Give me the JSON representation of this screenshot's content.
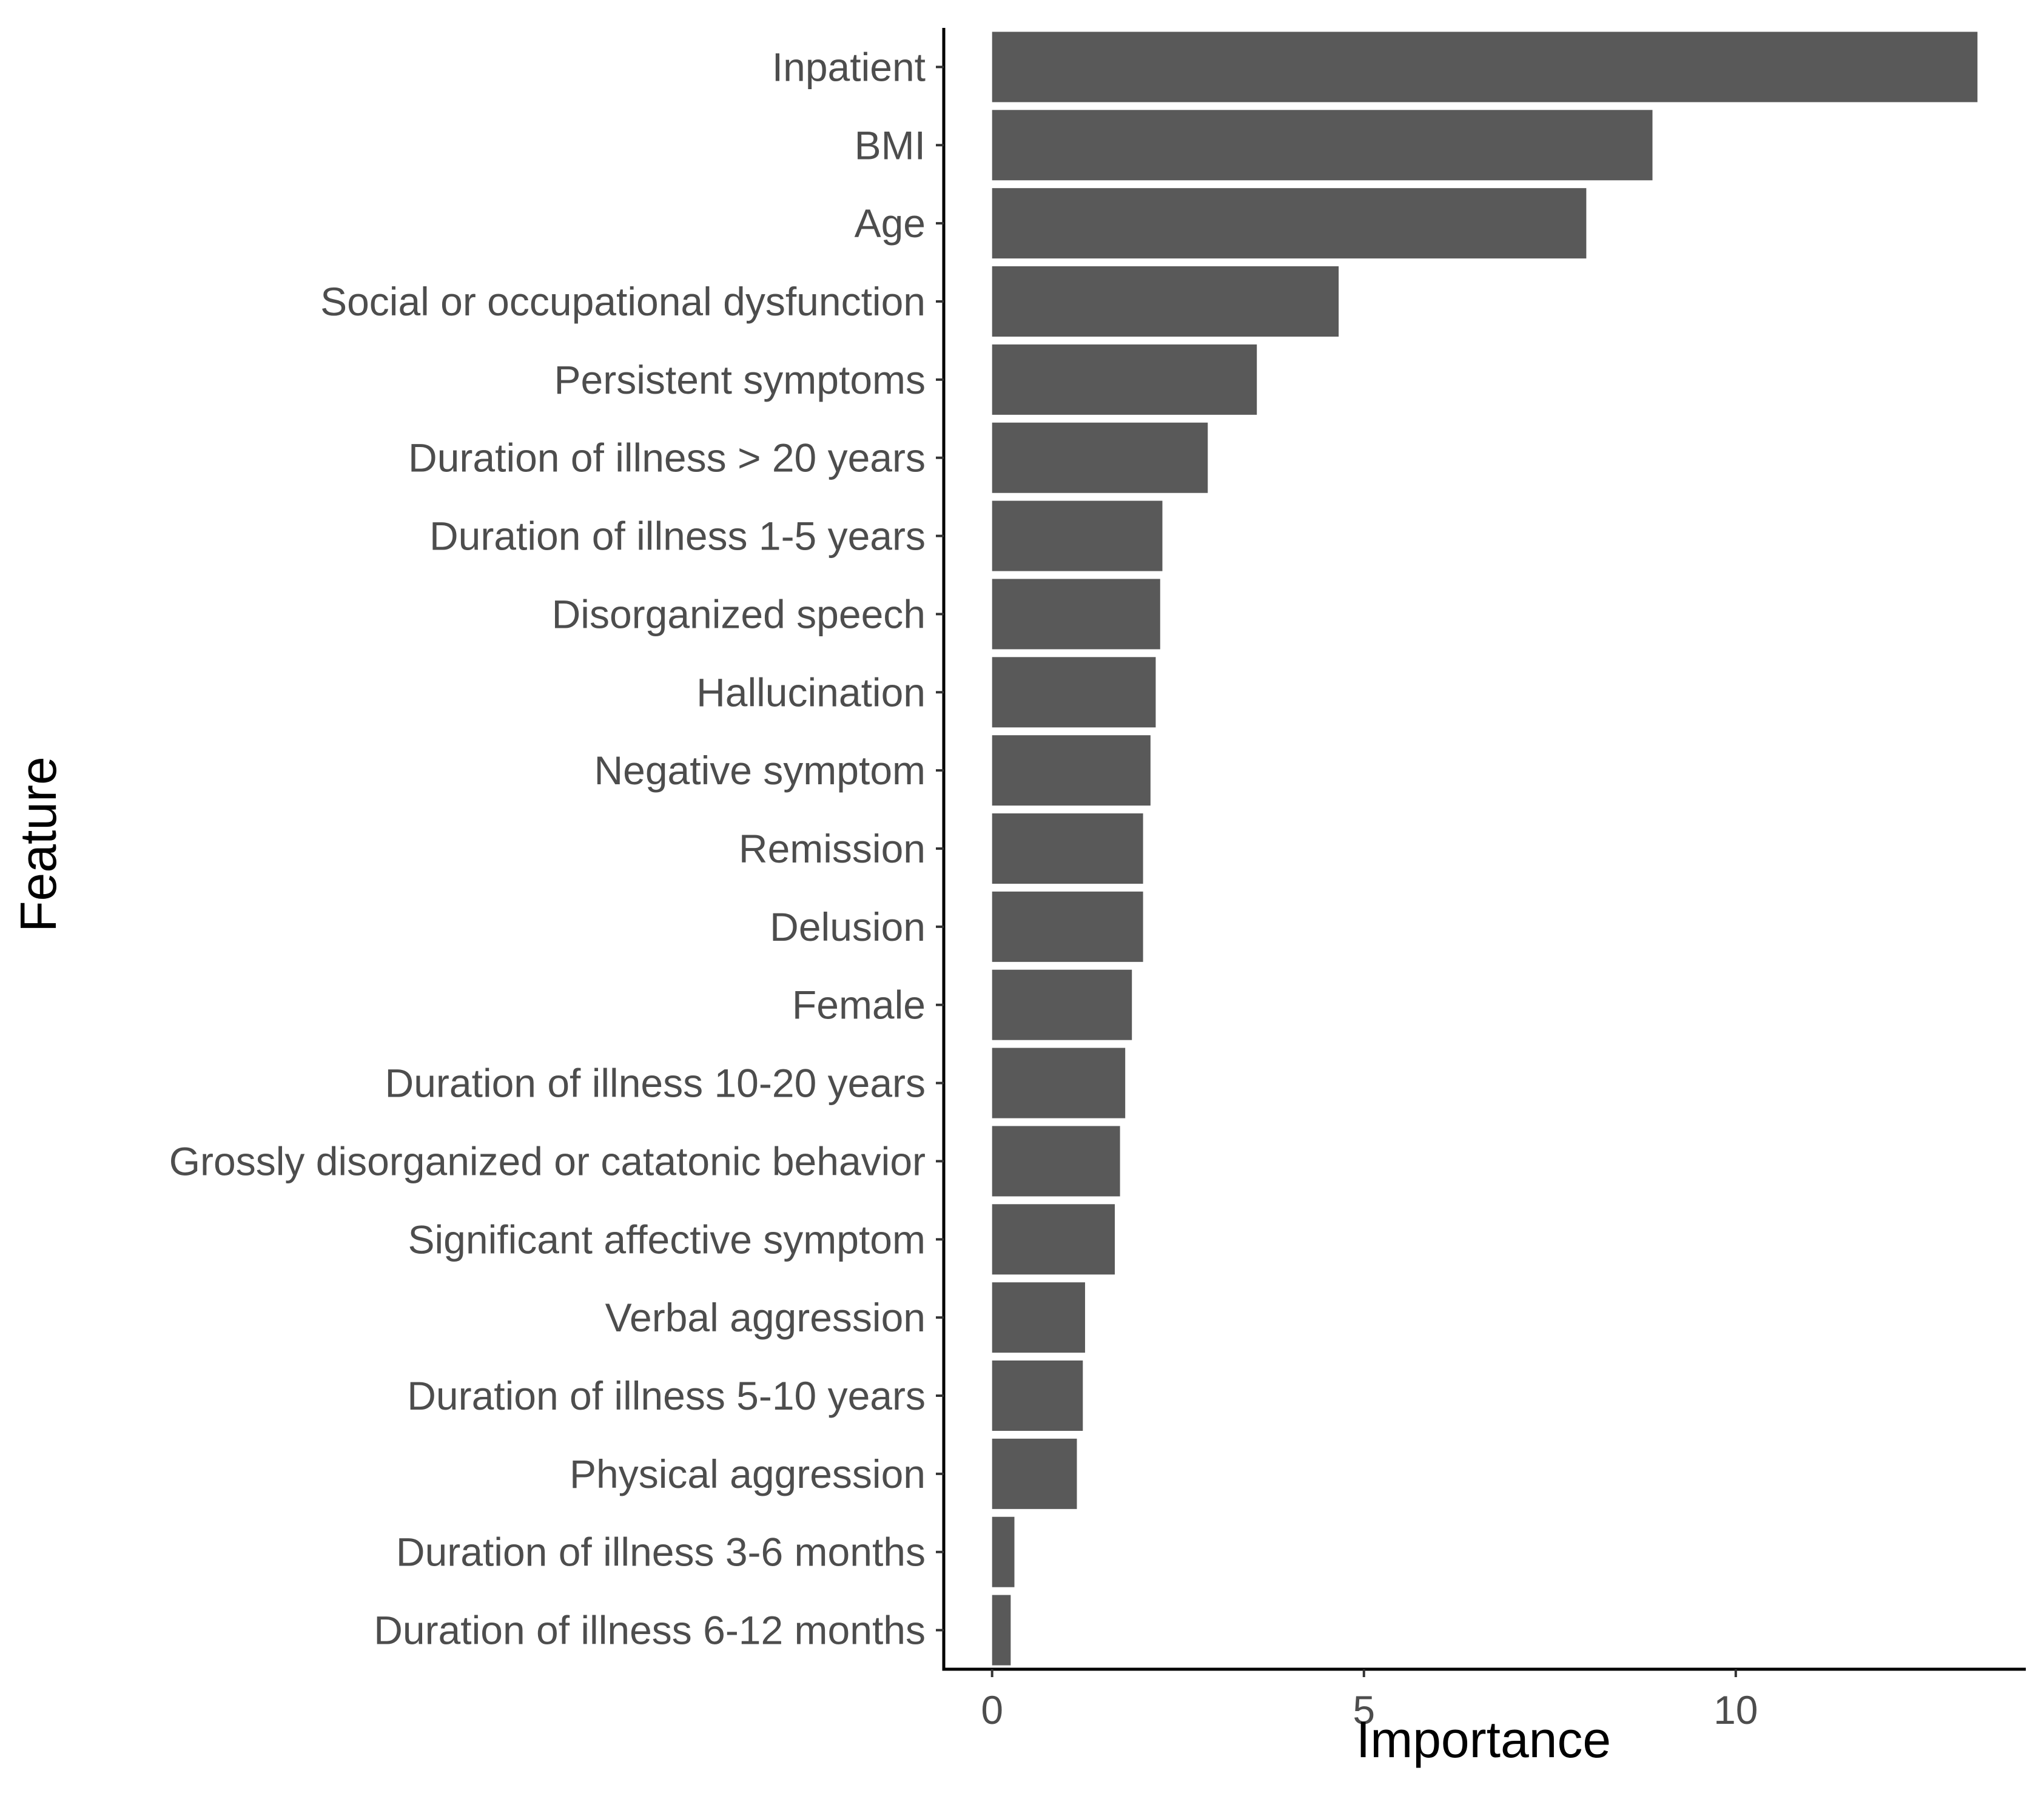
{
  "chart_data": {
    "type": "bar",
    "orientation": "horizontal",
    "title": "",
    "xlabel": "Importance",
    "ylabel": "Feature",
    "categories": [
      "Inpatient",
      "BMI",
      "Age",
      "Social or occupational dysfunction",
      "Persistent symptoms",
      "Duration of illness > 20 years",
      "Duration of illness 1-5 years",
      "Disorganized speech",
      "Hallucination",
      "Negative symptom",
      "Remission",
      "Delusion",
      "Female",
      "Duration of illness 10-20 years",
      "Grossly disorganized or catatonic behavior",
      "Significant affective symptom",
      "Verbal aggression",
      "Duration of illness 5-10 years",
      "Physical aggression",
      "Duration of illness 3-6 months",
      "Duration of illness 6-12 months"
    ],
    "values": [
      13.25,
      8.88,
      7.99,
      4.66,
      3.56,
      2.9,
      2.29,
      2.26,
      2.2,
      2.13,
      2.03,
      2.03,
      1.88,
      1.79,
      1.72,
      1.65,
      1.25,
      1.22,
      1.14,
      0.3,
      0.25
    ],
    "xlim": [
      -0.65,
      13.9
    ],
    "xticks": [
      0,
      5,
      10
    ],
    "xtick_labels": [
      "0",
      "5",
      "10"
    ],
    "bar_color": "#595959",
    "grid": false,
    "legend": "none"
  }
}
